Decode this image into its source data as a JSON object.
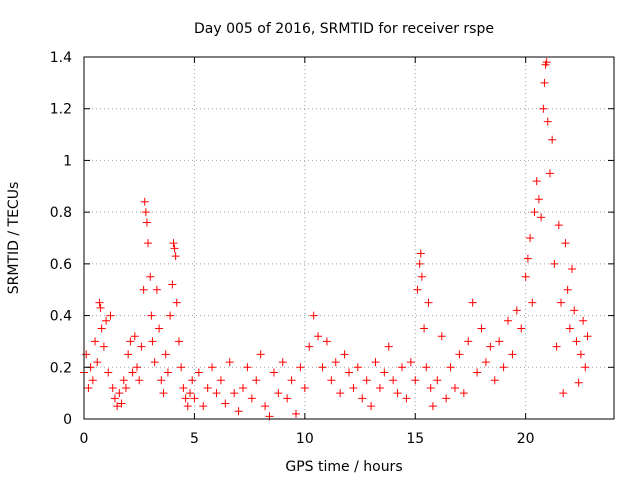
{
  "chart_data": {
    "type": "scatter",
    "title": "Day 005 of 2016, SRMTID for receiver rspe",
    "xlabel": "GPS time / hours",
    "ylabel": "SRMTID / TECUs",
    "xlim": [
      0,
      24
    ],
    "ylim": [
      0,
      1.4
    ],
    "x_ticks": [
      0,
      5,
      10,
      15,
      20
    ],
    "x_tick_labels": [
      "0",
      "5",
      "10",
      "15",
      "20"
    ],
    "y_ticks": [
      0,
      0.2,
      0.4,
      0.6,
      0.8,
      1,
      1.2,
      1.4
    ],
    "y_tick_labels": [
      "0",
      "0.2",
      "0.4",
      "0.6",
      "0.8",
      "1",
      "1.2",
      "1.4"
    ],
    "grid": true,
    "marker": "plus",
    "color": "#ff0000",
    "series": [
      {
        "name": "SRMTID",
        "points": [
          [
            0.0,
            0.18
          ],
          [
            0.1,
            0.25
          ],
          [
            0.2,
            0.12
          ],
          [
            0.3,
            0.2
          ],
          [
            0.4,
            0.15
          ],
          [
            0.5,
            0.3
          ],
          [
            0.6,
            0.22
          ],
          [
            0.7,
            0.45
          ],
          [
            0.75,
            0.43
          ],
          [
            0.8,
            0.35
          ],
          [
            0.9,
            0.28
          ],
          [
            1.0,
            0.38
          ],
          [
            1.1,
            0.18
          ],
          [
            1.2,
            0.4
          ],
          [
            1.3,
            0.12
          ],
          [
            1.4,
            0.08
          ],
          [
            1.5,
            0.05
          ],
          [
            1.6,
            0.1
          ],
          [
            1.7,
            0.06
          ],
          [
            1.8,
            0.15
          ],
          [
            1.9,
            0.12
          ],
          [
            2.0,
            0.25
          ],
          [
            2.1,
            0.3
          ],
          [
            2.2,
            0.18
          ],
          [
            2.3,
            0.32
          ],
          [
            2.4,
            0.2
          ],
          [
            2.5,
            0.15
          ],
          [
            2.6,
            0.28
          ],
          [
            2.7,
            0.5
          ],
          [
            2.75,
            0.84
          ],
          [
            2.8,
            0.8
          ],
          [
            2.85,
            0.76
          ],
          [
            2.9,
            0.68
          ],
          [
            3.0,
            0.55
          ],
          [
            3.05,
            0.4
          ],
          [
            3.1,
            0.3
          ],
          [
            3.2,
            0.22
          ],
          [
            3.3,
            0.5
          ],
          [
            3.4,
            0.35
          ],
          [
            3.5,
            0.15
          ],
          [
            3.6,
            0.1
          ],
          [
            3.7,
            0.25
          ],
          [
            3.8,
            0.18
          ],
          [
            3.9,
            0.4
          ],
          [
            4.0,
            0.52
          ],
          [
            4.05,
            0.68
          ],
          [
            4.1,
            0.66
          ],
          [
            4.15,
            0.63
          ],
          [
            4.2,
            0.45
          ],
          [
            4.3,
            0.3
          ],
          [
            4.4,
            0.2
          ],
          [
            4.5,
            0.12
          ],
          [
            4.6,
            0.08
          ],
          [
            4.7,
            0.05
          ],
          [
            4.8,
            0.1
          ],
          [
            4.9,
            0.15
          ],
          [
            5.0,
            0.08
          ],
          [
            5.2,
            0.18
          ],
          [
            5.4,
            0.05
          ],
          [
            5.6,
            0.12
          ],
          [
            5.8,
            0.2
          ],
          [
            6.0,
            0.1
          ],
          [
            6.2,
            0.15
          ],
          [
            6.4,
            0.06
          ],
          [
            6.6,
            0.22
          ],
          [
            6.8,
            0.1
          ],
          [
            7.0,
            0.03
          ],
          [
            7.2,
            0.12
          ],
          [
            7.4,
            0.2
          ],
          [
            7.6,
            0.08
          ],
          [
            7.8,
            0.15
          ],
          [
            8.0,
            0.25
          ],
          [
            8.2,
            0.05
          ],
          [
            8.4,
            0.01
          ],
          [
            8.6,
            0.18
          ],
          [
            8.8,
            0.1
          ],
          [
            9.0,
            0.22
          ],
          [
            9.2,
            0.08
          ],
          [
            9.4,
            0.15
          ],
          [
            9.6,
            0.02
          ],
          [
            9.8,
            0.2
          ],
          [
            10.0,
            0.12
          ],
          [
            10.2,
            0.28
          ],
          [
            10.4,
            0.4
          ],
          [
            10.6,
            0.32
          ],
          [
            10.8,
            0.2
          ],
          [
            11.0,
            0.3
          ],
          [
            11.2,
            0.15
          ],
          [
            11.4,
            0.22
          ],
          [
            11.6,
            0.1
          ],
          [
            11.8,
            0.25
          ],
          [
            12.0,
            0.18
          ],
          [
            12.2,
            0.12
          ],
          [
            12.4,
            0.2
          ],
          [
            12.6,
            0.08
          ],
          [
            12.8,
            0.15
          ],
          [
            13.0,
            0.05
          ],
          [
            13.2,
            0.22
          ],
          [
            13.4,
            0.12
          ],
          [
            13.6,
            0.18
          ],
          [
            13.8,
            0.28
          ],
          [
            14.0,
            0.15
          ],
          [
            14.2,
            0.1
          ],
          [
            14.4,
            0.2
          ],
          [
            14.6,
            0.08
          ],
          [
            14.8,
            0.22
          ],
          [
            15.0,
            0.15
          ],
          [
            15.1,
            0.5
          ],
          [
            15.2,
            0.6
          ],
          [
            15.25,
            0.64
          ],
          [
            15.3,
            0.55
          ],
          [
            15.4,
            0.35
          ],
          [
            15.5,
            0.2
          ],
          [
            15.6,
            0.45
          ],
          [
            15.7,
            0.12
          ],
          [
            15.8,
            0.05
          ],
          [
            16.0,
            0.15
          ],
          [
            16.2,
            0.32
          ],
          [
            16.4,
            0.08
          ],
          [
            16.6,
            0.2
          ],
          [
            16.8,
            0.12
          ],
          [
            17.0,
            0.25
          ],
          [
            17.2,
            0.1
          ],
          [
            17.4,
            0.3
          ],
          [
            17.6,
            0.45
          ],
          [
            17.8,
            0.18
          ],
          [
            18.0,
            0.35
          ],
          [
            18.2,
            0.22
          ],
          [
            18.4,
            0.28
          ],
          [
            18.6,
            0.15
          ],
          [
            18.8,
            0.3
          ],
          [
            19.0,
            0.2
          ],
          [
            19.2,
            0.38
          ],
          [
            19.4,
            0.25
          ],
          [
            19.6,
            0.42
          ],
          [
            19.8,
            0.35
          ],
          [
            20.0,
            0.55
          ],
          [
            20.1,
            0.62
          ],
          [
            20.2,
            0.7
          ],
          [
            20.3,
            0.45
          ],
          [
            20.4,
            0.8
          ],
          [
            20.5,
            0.92
          ],
          [
            20.6,
            0.85
          ],
          [
            20.7,
            0.78
          ],
          [
            20.8,
            1.2
          ],
          [
            20.85,
            1.3
          ],
          [
            20.9,
            1.37
          ],
          [
            20.95,
            1.38
          ],
          [
            21.0,
            1.15
          ],
          [
            21.1,
            0.95
          ],
          [
            21.2,
            1.08
          ],
          [
            21.3,
            0.6
          ],
          [
            21.4,
            0.28
          ],
          [
            21.5,
            0.75
          ],
          [
            21.6,
            0.45
          ],
          [
            21.7,
            0.1
          ],
          [
            21.8,
            0.68
          ],
          [
            21.9,
            0.5
          ],
          [
            22.0,
            0.35
          ],
          [
            22.1,
            0.58
          ],
          [
            22.2,
            0.42
          ],
          [
            22.3,
            0.3
          ],
          [
            22.4,
            0.14
          ],
          [
            22.5,
            0.25
          ],
          [
            22.6,
            0.38
          ],
          [
            22.7,
            0.2
          ],
          [
            22.8,
            0.32
          ]
        ]
      }
    ]
  }
}
